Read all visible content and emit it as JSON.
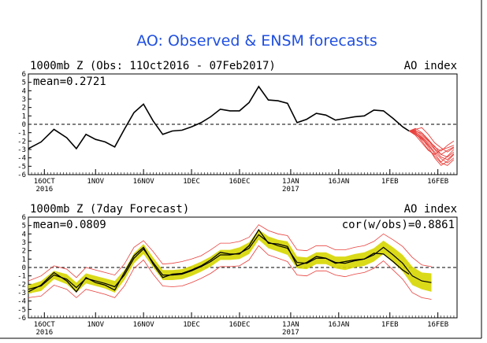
{
  "title": "AO: Observed & ENSM forecasts",
  "colors": {
    "title": "#1f4fe0",
    "observed": "#000000",
    "ensemble_members": "#e8403c",
    "spread_band": "#d6d600",
    "text": "#000000",
    "zero_line": "#000000"
  },
  "chart_data": [
    {
      "type": "line",
      "panel_title": "1000mb Z (Obs: 11Oct2016 - 07Feb2017)",
      "right_label": "AO index",
      "annotation": "mean=0.2721",
      "ylim": [
        -6,
        6
      ],
      "yticks": [
        -6,
        -5,
        -4,
        -3,
        -2,
        -1,
        0,
        1,
        2,
        3,
        4,
        5,
        6
      ],
      "xlim": [
        "2016-10-11",
        "2017-02-22"
      ],
      "xtick_labels": [
        {
          "date": "2016-10-16",
          "label": "16OCT",
          "year": "2016"
        },
        {
          "date": "2016-11-01",
          "label": "1NOV",
          "year": ""
        },
        {
          "date": "2016-11-16",
          "label": "16NOV",
          "year": ""
        },
        {
          "date": "2016-12-01",
          "label": "1DEC",
          "year": ""
        },
        {
          "date": "2016-12-16",
          "label": "16DEC",
          "year": ""
        },
        {
          "date": "2017-01-01",
          "label": "1JAN",
          "year": "2017"
        },
        {
          "date": "2017-01-16",
          "label": "16JAN",
          "year": ""
        },
        {
          "date": "2017-02-01",
          "label": "1FEB",
          "year": ""
        },
        {
          "date": "2017-02-16",
          "label": "16FEB",
          "year": ""
        }
      ],
      "zero_line": "dashed",
      "series": [
        {
          "role": "observed",
          "x": [
            "2016-10-11",
            "2016-10-15",
            "2016-10-19",
            "2016-10-23",
            "2016-10-26",
            "2016-10-29",
            "2016-11-01",
            "2016-11-04",
            "2016-11-07",
            "2016-11-10",
            "2016-11-13",
            "2016-11-16",
            "2016-11-19",
            "2016-11-22",
            "2016-11-25",
            "2016-11-28",
            "2016-12-01",
            "2016-12-04",
            "2016-12-07",
            "2016-12-10",
            "2016-12-13",
            "2016-12-16",
            "2016-12-19",
            "2016-12-22",
            "2016-12-25",
            "2016-12-28",
            "2016-12-31",
            "2017-01-03",
            "2017-01-06",
            "2017-01-09",
            "2017-01-12",
            "2017-01-15",
            "2017-01-18",
            "2017-01-21",
            "2017-01-24",
            "2017-01-27",
            "2017-01-30",
            "2017-02-02",
            "2017-02-05",
            "2017-02-07"
          ],
          "y": [
            -2.9,
            -2.1,
            -0.6,
            -1.6,
            -2.9,
            -1.2,
            -1.8,
            -2.1,
            -2.7,
            -0.6,
            1.4,
            2.4,
            0.4,
            -1.2,
            -0.8,
            -0.7,
            -0.3,
            0.2,
            0.9,
            1.8,
            1.6,
            1.6,
            2.6,
            4.5,
            2.9,
            2.8,
            2.5,
            0.2,
            0.6,
            1.3,
            1.1,
            0.5,
            0.7,
            0.9,
            1.0,
            1.7,
            1.6,
            0.7,
            -0.3,
            -0.8
          ]
        }
      ],
      "ensemble": {
        "x": [
          "2017-02-07",
          "2017-02-09",
          "2017-02-11",
          "2017-02-13",
          "2017-02-15",
          "2017-02-17",
          "2017-02-19",
          "2017-02-21"
        ],
        "members": [
          [
            -0.8,
            -1.2,
            -1.8,
            -2.5,
            -3.5,
            -4.5,
            -3.8,
            -3.0
          ],
          [
            -0.8,
            -0.9,
            -1.5,
            -2.2,
            -3.0,
            -3.9,
            -4.2,
            -3.5
          ],
          [
            -0.8,
            -0.5,
            -1.0,
            -1.8,
            -2.7,
            -3.2,
            -2.5,
            -2.0
          ],
          [
            -0.8,
            -1.0,
            -2.0,
            -3.0,
            -3.8,
            -4.6,
            -4.9,
            -4.2
          ],
          [
            -0.8,
            -0.6,
            -0.4,
            -1.2,
            -2.2,
            -2.8,
            -3.3,
            -2.8
          ],
          [
            -0.8,
            -1.1,
            -1.7,
            -2.7,
            -4.0,
            -4.9,
            -4.4,
            -3.6
          ],
          [
            -0.8,
            -0.7,
            -1.3,
            -2.0,
            -2.6,
            -3.6,
            -3.9,
            -3.3
          ],
          [
            -0.8,
            -0.9,
            -1.6,
            -2.4,
            -3.3,
            -4.1,
            -4.6,
            -4.0
          ],
          [
            -0.8,
            -1.3,
            -2.2,
            -3.1,
            -3.6,
            -3.0,
            -2.8,
            -2.5
          ],
          [
            -0.8,
            -0.8,
            -1.1,
            -1.9,
            -2.9,
            -3.6,
            -3.1,
            -2.7
          ]
        ]
      }
    },
    {
      "type": "line",
      "panel_title": "1000mb Z (7day Forecast)",
      "right_label": "AO index",
      "annotation": "mean=0.0809",
      "annotation_right": "cor(w/obs)=0.8861",
      "ylim": [
        -6,
        6
      ],
      "yticks": [
        -6,
        -5,
        -4,
        -3,
        -2,
        -1,
        0,
        1,
        2,
        3,
        4,
        5,
        6
      ],
      "xlim": [
        "2016-10-11",
        "2017-02-22"
      ],
      "xtick_labels": [
        {
          "date": "2016-10-16",
          "label": "16OCT",
          "year": "2016"
        },
        {
          "date": "2016-11-01",
          "label": "1NOV",
          "year": ""
        },
        {
          "date": "2016-11-16",
          "label": "16NOV",
          "year": ""
        },
        {
          "date": "2016-12-01",
          "label": "1DEC",
          "year": ""
        },
        {
          "date": "2016-12-16",
          "label": "16DEC",
          "year": ""
        },
        {
          "date": "2017-01-01",
          "label": "1JAN",
          "year": "2017"
        },
        {
          "date": "2017-01-16",
          "label": "16JAN",
          "year": ""
        },
        {
          "date": "2017-02-01",
          "label": "1FEB",
          "year": ""
        },
        {
          "date": "2017-02-16",
          "label": "16FEB",
          "year": ""
        }
      ],
      "zero_line": "dashed",
      "series": [
        {
          "role": "observed",
          "x": [
            "2016-10-11",
            "2016-10-15",
            "2016-10-19",
            "2016-10-23",
            "2016-10-26",
            "2016-10-29",
            "2016-11-01",
            "2016-11-04",
            "2016-11-07",
            "2016-11-10",
            "2016-11-13",
            "2016-11-16",
            "2016-11-19",
            "2016-11-22",
            "2016-11-25",
            "2016-11-28",
            "2016-12-01",
            "2016-12-04",
            "2016-12-07",
            "2016-12-10",
            "2016-12-13",
            "2016-12-16",
            "2016-12-19",
            "2016-12-22",
            "2016-12-25",
            "2016-12-28",
            "2016-12-31",
            "2017-01-03",
            "2017-01-06",
            "2017-01-09",
            "2017-01-12",
            "2017-01-15",
            "2017-01-18",
            "2017-01-21",
            "2017-01-24",
            "2017-01-27",
            "2017-01-30",
            "2017-02-02",
            "2017-02-05",
            "2017-02-07"
          ],
          "y": [
            -2.9,
            -2.1,
            -0.6,
            -1.6,
            -2.9,
            -1.2,
            -1.8,
            -2.1,
            -2.7,
            -0.6,
            1.4,
            2.4,
            0.4,
            -1.2,
            -0.8,
            -0.7,
            -0.3,
            0.2,
            0.9,
            1.8,
            1.6,
            1.6,
            2.6,
            4.5,
            2.9,
            2.8,
            2.5,
            0.2,
            0.6,
            1.3,
            1.1,
            0.5,
            0.7,
            0.9,
            1.0,
            1.7,
            1.6,
            0.7,
            -0.3,
            -0.8
          ]
        },
        {
          "role": "forecast_mean",
          "x": [
            "2016-10-11",
            "2016-10-15",
            "2016-10-19",
            "2016-10-23",
            "2016-10-26",
            "2016-10-29",
            "2016-11-01",
            "2016-11-04",
            "2016-11-07",
            "2016-11-10",
            "2016-11-13",
            "2016-11-16",
            "2016-11-19",
            "2016-11-22",
            "2016-11-25",
            "2016-11-28",
            "2016-12-01",
            "2016-12-04",
            "2016-12-07",
            "2016-12-10",
            "2016-12-13",
            "2016-12-16",
            "2016-12-19",
            "2016-12-22",
            "2016-12-25",
            "2016-12-28",
            "2016-12-31",
            "2017-01-03",
            "2017-01-06",
            "2017-01-09",
            "2017-01-12",
            "2017-01-15",
            "2017-01-18",
            "2017-01-21",
            "2017-01-24",
            "2017-01-27",
            "2017-01-30",
            "2017-02-02",
            "2017-02-05",
            "2017-02-08",
            "2017-02-11",
            "2017-02-14"
          ],
          "y": [
            -2.6,
            -2.2,
            -0.9,
            -1.4,
            -2.4,
            -1.3,
            -1.6,
            -1.9,
            -2.3,
            -0.9,
            1.1,
            2.2,
            0.6,
            -0.9,
            -0.9,
            -0.8,
            -0.4,
            0.1,
            0.7,
            1.5,
            1.5,
            1.7,
            2.3,
            3.9,
            3.0,
            2.6,
            2.3,
            0.6,
            0.5,
            1.1,
            1.1,
            0.6,
            0.5,
            0.8,
            1.0,
            1.5,
            2.4,
            1.5,
            0.5,
            -1.0,
            -1.6,
            -1.8
          ]
        }
      ],
      "band": {
        "x": [
          "2016-10-11",
          "2016-10-15",
          "2016-10-19",
          "2016-10-23",
          "2016-10-26",
          "2016-10-29",
          "2016-11-01",
          "2016-11-04",
          "2016-11-07",
          "2016-11-10",
          "2016-11-13",
          "2016-11-16",
          "2016-11-19",
          "2016-11-22",
          "2016-11-25",
          "2016-11-28",
          "2016-12-01",
          "2016-12-04",
          "2016-12-07",
          "2016-12-10",
          "2016-12-13",
          "2016-12-16",
          "2016-12-19",
          "2016-12-22",
          "2016-12-25",
          "2016-12-28",
          "2016-12-31",
          "2017-01-03",
          "2017-01-06",
          "2017-01-09",
          "2017-01-12",
          "2017-01-15",
          "2017-01-18",
          "2017-01-21",
          "2017-01-24",
          "2017-01-27",
          "2017-01-30",
          "2017-02-02",
          "2017-02-05",
          "2017-02-08",
          "2017-02-11",
          "2017-02-14"
        ],
        "upper": [
          -2.1,
          -1.6,
          -0.4,
          -0.8,
          -1.8,
          -0.7,
          -1.0,
          -1.3,
          -1.6,
          -0.3,
          1.7,
          2.8,
          1.2,
          -0.3,
          -0.3,
          -0.2,
          0.2,
          0.7,
          1.3,
          2.1,
          2.1,
          2.4,
          3.0,
          4.5,
          3.7,
          3.3,
          3.1,
          1.3,
          1.2,
          1.8,
          1.8,
          1.3,
          1.3,
          1.6,
          1.8,
          2.3,
          3.2,
          2.4,
          1.5,
          0.1,
          -0.6,
          -0.7
        ],
        "lower": [
          -3.1,
          -2.8,
          -1.4,
          -2.0,
          -3.0,
          -1.9,
          -2.2,
          -2.5,
          -3.0,
          -1.5,
          0.5,
          1.6,
          0.0,
          -1.5,
          -1.5,
          -1.4,
          -1.0,
          -0.5,
          0.1,
          0.9,
          0.9,
          1.0,
          1.6,
          3.3,
          2.3,
          1.9,
          1.5,
          -0.1,
          -0.2,
          0.4,
          0.4,
          -0.1,
          -0.3,
          0.0,
          0.2,
          0.7,
          1.6,
          0.6,
          -0.5,
          -2.1,
          -2.6,
          -2.9
        ]
      },
      "envelope": {
        "upper": [
          -1.6,
          -1.0,
          0.2,
          -0.2,
          -1.2,
          0.0,
          -0.3,
          -0.6,
          -0.9,
          0.4,
          2.4,
          3.2,
          1.9,
          0.4,
          0.5,
          0.7,
          1.0,
          1.4,
          2.1,
          2.9,
          2.9,
          3.1,
          3.6,
          5.1,
          4.4,
          4.0,
          3.8,
          2.1,
          2.0,
          2.6,
          2.6,
          2.1,
          2.1,
          2.4,
          2.6,
          3.1,
          4.0,
          3.3,
          2.5,
          1.2,
          0.3,
          0.1
        ],
        "lower": [
          -3.6,
          -3.4,
          -2.1,
          -2.6,
          -3.6,
          -2.6,
          -2.9,
          -3.2,
          -3.6,
          -2.2,
          -0.1,
          0.9,
          -0.8,
          -2.2,
          -2.3,
          -2.2,
          -1.8,
          -1.3,
          -0.7,
          0.1,
          0.1,
          0.2,
          0.9,
          2.6,
          1.5,
          1.1,
          0.7,
          -0.9,
          -1.0,
          -0.4,
          -0.4,
          -0.9,
          -1.1,
          -0.8,
          -0.6,
          -0.1,
          0.8,
          -0.3,
          -1.4,
          -3.0,
          -3.6,
          -3.8
        ]
      }
    }
  ]
}
